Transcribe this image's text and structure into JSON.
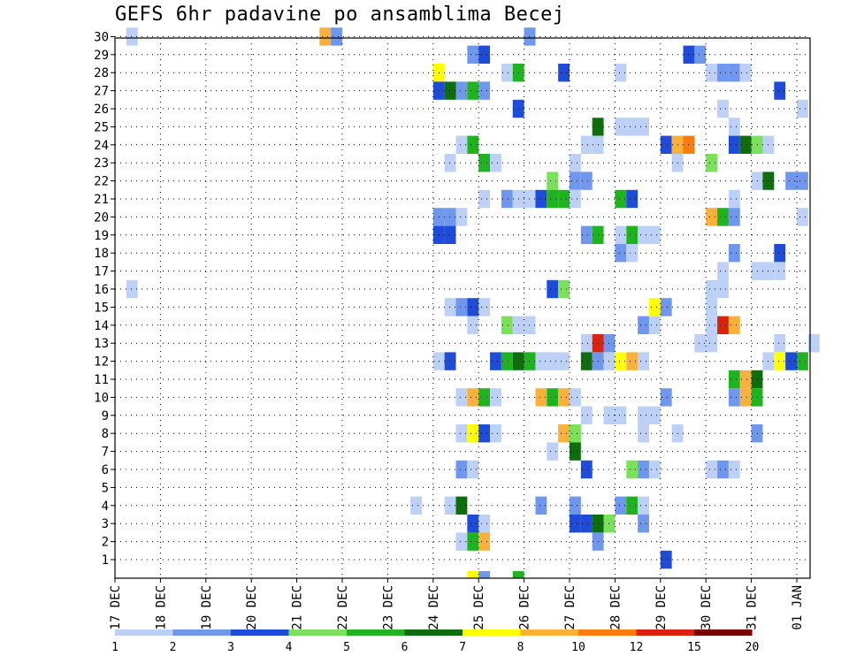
{
  "title": "GEFS 6hr padavine po ansamblima Becej",
  "colors": {
    "scale": [
      "#bcd0f8",
      "#6f97ee",
      "#1f4bd9",
      "#7be05a",
      "#1fb41f",
      "#0e6e0e",
      "#ffff00",
      "#fbb03b",
      "#f87c12",
      "#d8230e",
      "#7a0000"
    ],
    "grid": "#000000"
  },
  "chart_data": {
    "type": "heatmap",
    "title": "GEFS 6hr padavine po ansamblima Becej",
    "x_tick_labels": [
      "17 DEC",
      "18 DEC",
      "19 DEC",
      "20 DEC",
      "21 DEC",
      "22 DEC",
      "23 DEC",
      "24 DEC",
      "25 DEC",
      "26 DEC",
      "27 DEC",
      "28 DEC",
      "29 DEC",
      "30 DEC",
      "31 DEC",
      "01 JAN"
    ],
    "y_tick_labels": [
      "1",
      "2",
      "3",
      "4",
      "5",
      "6",
      "7",
      "8",
      "9",
      "10",
      "11",
      "12",
      "13",
      "14",
      "15",
      "16",
      "17",
      "18",
      "19",
      "20",
      "21",
      "22",
      "23",
      "24",
      "25",
      "26",
      "27",
      "28",
      "29",
      "30"
    ],
    "time_step_hours": 6,
    "ylim": [
      0,
      30
    ],
    "grid": true,
    "legend": {
      "position": "bottom",
      "boundaries": [
        "1",
        "2",
        "3",
        "4",
        "5",
        "6",
        "7",
        "8",
        "10",
        "12",
        "15",
        "20"
      ]
    },
    "cells": [
      [
        1,
        30,
        1
      ],
      [
        18,
        30,
        8
      ],
      [
        19,
        30,
        2
      ],
      [
        36,
        30,
        2
      ],
      [
        31,
        29,
        2
      ],
      [
        32,
        29,
        3
      ],
      [
        50,
        29,
        3
      ],
      [
        51,
        29,
        2
      ],
      [
        28,
        28,
        7
      ],
      [
        34,
        28,
        1
      ],
      [
        35,
        28,
        5
      ],
      [
        39,
        28,
        3
      ],
      [
        44,
        28,
        1
      ],
      [
        52,
        28,
        1
      ],
      [
        53,
        28,
        2
      ],
      [
        54,
        28,
        2
      ],
      [
        55,
        28,
        1
      ],
      [
        28,
        27,
        3
      ],
      [
        29,
        27,
        6
      ],
      [
        30,
        27,
        2
      ],
      [
        31,
        27,
        5
      ],
      [
        32,
        27,
        2
      ],
      [
        58,
        27,
        3
      ],
      [
        35,
        26,
        3
      ],
      [
        53,
        26,
        1
      ],
      [
        60,
        26,
        1
      ],
      [
        42,
        25,
        6
      ],
      [
        44,
        25,
        1
      ],
      [
        45,
        25,
        1
      ],
      [
        46,
        25,
        1
      ],
      [
        54,
        25,
        1
      ],
      [
        30,
        24,
        1
      ],
      [
        31,
        24,
        5
      ],
      [
        41,
        24,
        1
      ],
      [
        42,
        24,
        1
      ],
      [
        48,
        24,
        3
      ],
      [
        49,
        24,
        8
      ],
      [
        50,
        24,
        9
      ],
      [
        54,
        24,
        3
      ],
      [
        55,
        24,
        6
      ],
      [
        56,
        24,
        4
      ],
      [
        57,
        24,
        1
      ],
      [
        29,
        23,
        1
      ],
      [
        32,
        23,
        5
      ],
      [
        33,
        23,
        1
      ],
      [
        40,
        23,
        1
      ],
      [
        49,
        23,
        1
      ],
      [
        52,
        23,
        4
      ],
      [
        38,
        22,
        4
      ],
      [
        40,
        22,
        2
      ],
      [
        41,
        22,
        2
      ],
      [
        56,
        22,
        1
      ],
      [
        57,
        22,
        6
      ],
      [
        59,
        22,
        2
      ],
      [
        60,
        22,
        2
      ],
      [
        32,
        21,
        1
      ],
      [
        34,
        21,
        2
      ],
      [
        35,
        21,
        1
      ],
      [
        36,
        21,
        1
      ],
      [
        37,
        21,
        3
      ],
      [
        38,
        21,
        5
      ],
      [
        39,
        21,
        5
      ],
      [
        40,
        21,
        1
      ],
      [
        44,
        21,
        5
      ],
      [
        45,
        21,
        3
      ],
      [
        54,
        21,
        1
      ],
      [
        28,
        20,
        2
      ],
      [
        29,
        20,
        2
      ],
      [
        30,
        20,
        1
      ],
      [
        52,
        20,
        8
      ],
      [
        53,
        20,
        5
      ],
      [
        54,
        20,
        2
      ],
      [
        60,
        20,
        1
      ],
      [
        28,
        19,
        3
      ],
      [
        29,
        19,
        3
      ],
      [
        41,
        19,
        2
      ],
      [
        42,
        19,
        5
      ],
      [
        44,
        19,
        1
      ],
      [
        45,
        19,
        5
      ],
      [
        46,
        19,
        1
      ],
      [
        47,
        19,
        1
      ],
      [
        44,
        18,
        2
      ],
      [
        45,
        18,
        1
      ],
      [
        54,
        18,
        2
      ],
      [
        58,
        18,
        3
      ],
      [
        53,
        17,
        1
      ],
      [
        56,
        17,
        1
      ],
      [
        57,
        17,
        1
      ],
      [
        58,
        17,
        1
      ],
      [
        1,
        16,
        1
      ],
      [
        38,
        16,
        3
      ],
      [
        39,
        16,
        4
      ],
      [
        52,
        16,
        1
      ],
      [
        53,
        16,
        1
      ],
      [
        29,
        15,
        1
      ],
      [
        30,
        15,
        2
      ],
      [
        31,
        15,
        3
      ],
      [
        32,
        15,
        1
      ],
      [
        47,
        15,
        7
      ],
      [
        48,
        15,
        2
      ],
      [
        52,
        15,
        1
      ],
      [
        31,
        14,
        1
      ],
      [
        34,
        14,
        4
      ],
      [
        35,
        14,
        1
      ],
      [
        36,
        14,
        1
      ],
      [
        46,
        14,
        2
      ],
      [
        47,
        14,
        1
      ],
      [
        52,
        14,
        1
      ],
      [
        53,
        14,
        10
      ],
      [
        54,
        14,
        8
      ],
      [
        41,
        13,
        1
      ],
      [
        42,
        13,
        10
      ],
      [
        43,
        13,
        2
      ],
      [
        51,
        13,
        1
      ],
      [
        52,
        13,
        1
      ],
      [
        58,
        13,
        1
      ],
      [
        61,
        13,
        1
      ],
      [
        28,
        12,
        1
      ],
      [
        29,
        12,
        3
      ],
      [
        33,
        12,
        3
      ],
      [
        34,
        12,
        5
      ],
      [
        35,
        12,
        6
      ],
      [
        36,
        12,
        5
      ],
      [
        37,
        12,
        1
      ],
      [
        38,
        12,
        1
      ],
      [
        39,
        12,
        1
      ],
      [
        41,
        12,
        6
      ],
      [
        42,
        12,
        2
      ],
      [
        43,
        12,
        1
      ],
      [
        44,
        12,
        7
      ],
      [
        45,
        12,
        8
      ],
      [
        46,
        12,
        1
      ],
      [
        57,
        12,
        1
      ],
      [
        58,
        12,
        7
      ],
      [
        59,
        12,
        3
      ],
      [
        60,
        12,
        5
      ],
      [
        54,
        11,
        5
      ],
      [
        55,
        11,
        8
      ],
      [
        56,
        11,
        6
      ],
      [
        30,
        10,
        1
      ],
      [
        31,
        10,
        8
      ],
      [
        32,
        10,
        5
      ],
      [
        33,
        10,
        1
      ],
      [
        37,
        10,
        8
      ],
      [
        38,
        10,
        5
      ],
      [
        39,
        10,
        8
      ],
      [
        40,
        10,
        1
      ],
      [
        48,
        10,
        2
      ],
      [
        54,
        10,
        2
      ],
      [
        55,
        10,
        8
      ],
      [
        56,
        10,
        5
      ],
      [
        41,
        9,
        1
      ],
      [
        43,
        9,
        1
      ],
      [
        44,
        9,
        1
      ],
      [
        46,
        9,
        1
      ],
      [
        47,
        9,
        1
      ],
      [
        30,
        8,
        1
      ],
      [
        31,
        8,
        7
      ],
      [
        32,
        8,
        3
      ],
      [
        33,
        8,
        1
      ],
      [
        39,
        8,
        8
      ],
      [
        40,
        8,
        4
      ],
      [
        46,
        8,
        1
      ],
      [
        49,
        8,
        1
      ],
      [
        56,
        8,
        2
      ],
      [
        38,
        7,
        1
      ],
      [
        40,
        7,
        6
      ],
      [
        30,
        6,
        2
      ],
      [
        31,
        6,
        1
      ],
      [
        41,
        6,
        3
      ],
      [
        45,
        6,
        4
      ],
      [
        46,
        6,
        2
      ],
      [
        47,
        6,
        1
      ],
      [
        52,
        6,
        1
      ],
      [
        53,
        6,
        2
      ],
      [
        54,
        6,
        1
      ],
      [
        26,
        4,
        1
      ],
      [
        29,
        4,
        1
      ],
      [
        30,
        4,
        6
      ],
      [
        37,
        4,
        2
      ],
      [
        40,
        4,
        2
      ],
      [
        44,
        4,
        2
      ],
      [
        45,
        4,
        5
      ],
      [
        46,
        4,
        1
      ],
      [
        31,
        3,
        3
      ],
      [
        32,
        3,
        1
      ],
      [
        40,
        3,
        3
      ],
      [
        41,
        3,
        3
      ],
      [
        42,
        3,
        6
      ],
      [
        43,
        3,
        4
      ],
      [
        46,
        3,
        2
      ],
      [
        30,
        2,
        1
      ],
      [
        31,
        2,
        5
      ],
      [
        32,
        2,
        8
      ],
      [
        42,
        2,
        2
      ],
      [
        48,
        1,
        3
      ]
    ],
    "partial_bottom_row": [
      [
        31,
        7
      ],
      [
        32,
        2
      ],
      [
        35,
        5
      ]
    ]
  }
}
